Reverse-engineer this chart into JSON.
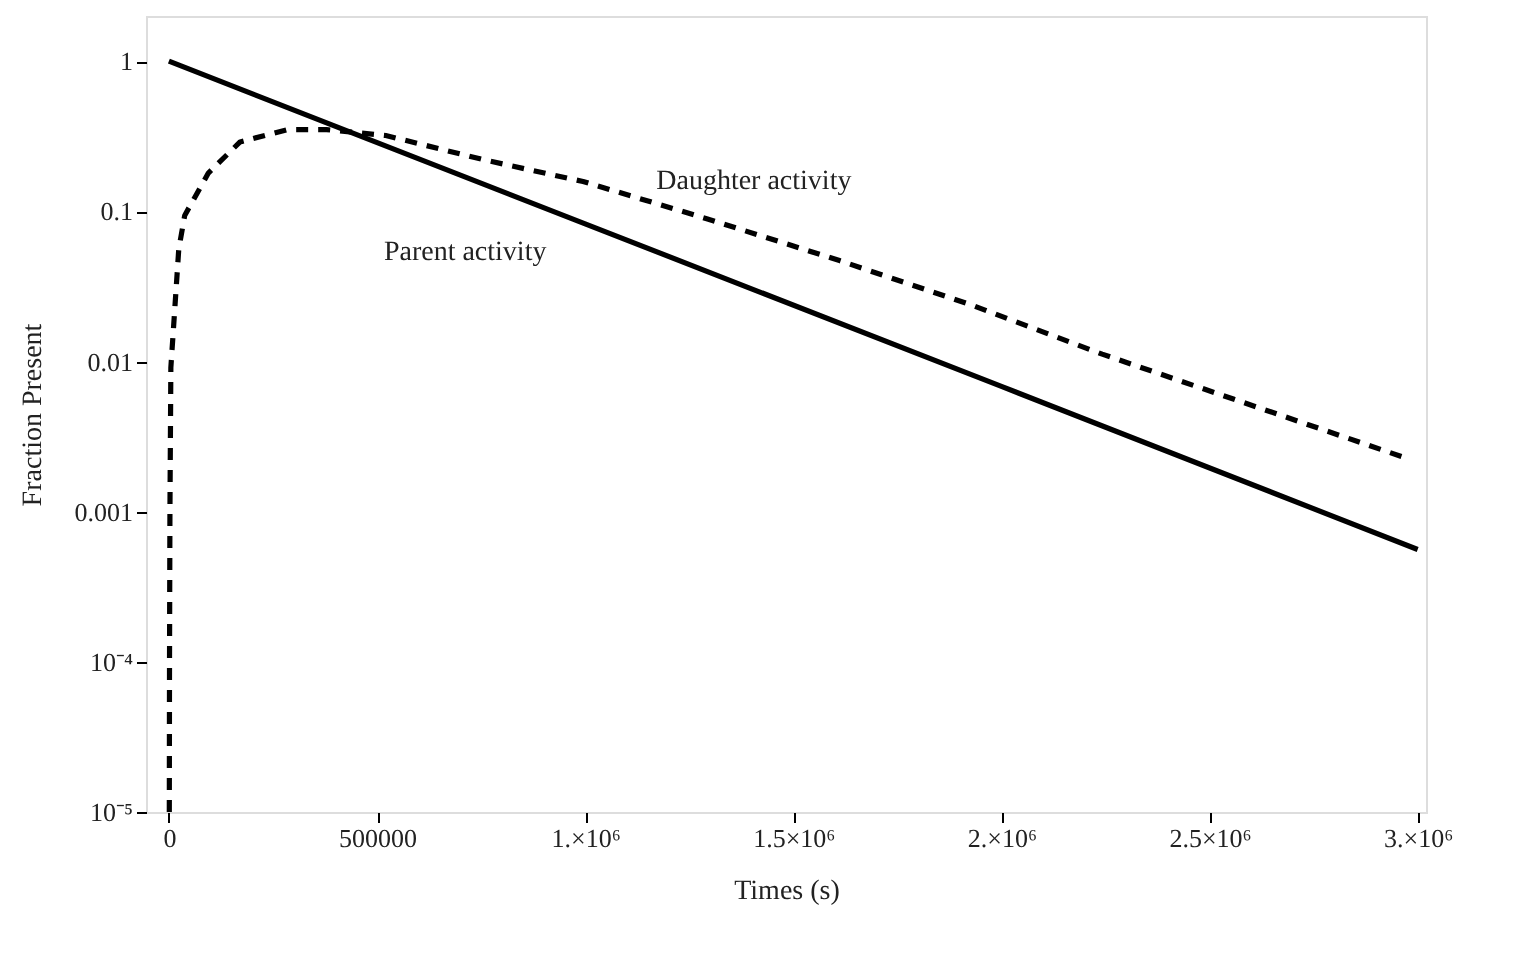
{
  "chart_data": {
    "type": "line",
    "xlabel": "Times (s)",
    "ylabel": "Fraction Present",
    "log": "y",
    "marker": "none",
    "xlim": [
      -55000,
      3020000
    ],
    "ylim": [
      1e-05,
      2
    ],
    "xticks": [
      0,
      500000,
      {
        "value": 1000000,
        "label": "1.×10⁶"
      },
      {
        "value": 1500000,
        "label": "1.5×10⁶"
      },
      {
        "value": 2000000,
        "label": "2.×10⁶"
      },
      {
        "value": 2500000,
        "label": "2.5×10⁶"
      },
      {
        "value": 3000000,
        "label": "3.×10⁶"
      }
    ],
    "yticks": [
      1,
      0.1,
      0.01,
      0.001,
      {
        "value": 0.0001,
        "label": "10⁻⁴"
      },
      {
        "value": 1e-05,
        "label": "10⁻⁵"
      }
    ],
    "series": [
      {
        "name": "Parent activity",
        "color": "#000000",
        "line_style": "solid",
        "x": [
          0,
          1000000,
          2000000,
          3000000
        ],
        "values": [
          1,
          0.0826,
          0.00683,
          0.00056
        ]
      },
      {
        "name": "Daughter activity",
        "color": "#000000",
        "line_style": "dashed",
        "x": [
          1000,
          1500,
          2500,
          4700,
          23700,
          38000,
          94800,
          171000,
          284000,
          379000,
          521000,
          758000,
          995000,
          1213000,
          1294000,
          1611000,
          1924000,
          2242000,
          2559000,
          2967000
        ],
        "values": [
          1e-05,
          0.0001,
          0.001,
          0.0091,
          0.056,
          0.094,
          0.18,
          0.29,
          0.35,
          0.35,
          0.32,
          0.22,
          0.158,
          0.104,
          0.089,
          0.047,
          0.024,
          0.0112,
          0.0056,
          0.0023
        ]
      }
    ]
  }
}
